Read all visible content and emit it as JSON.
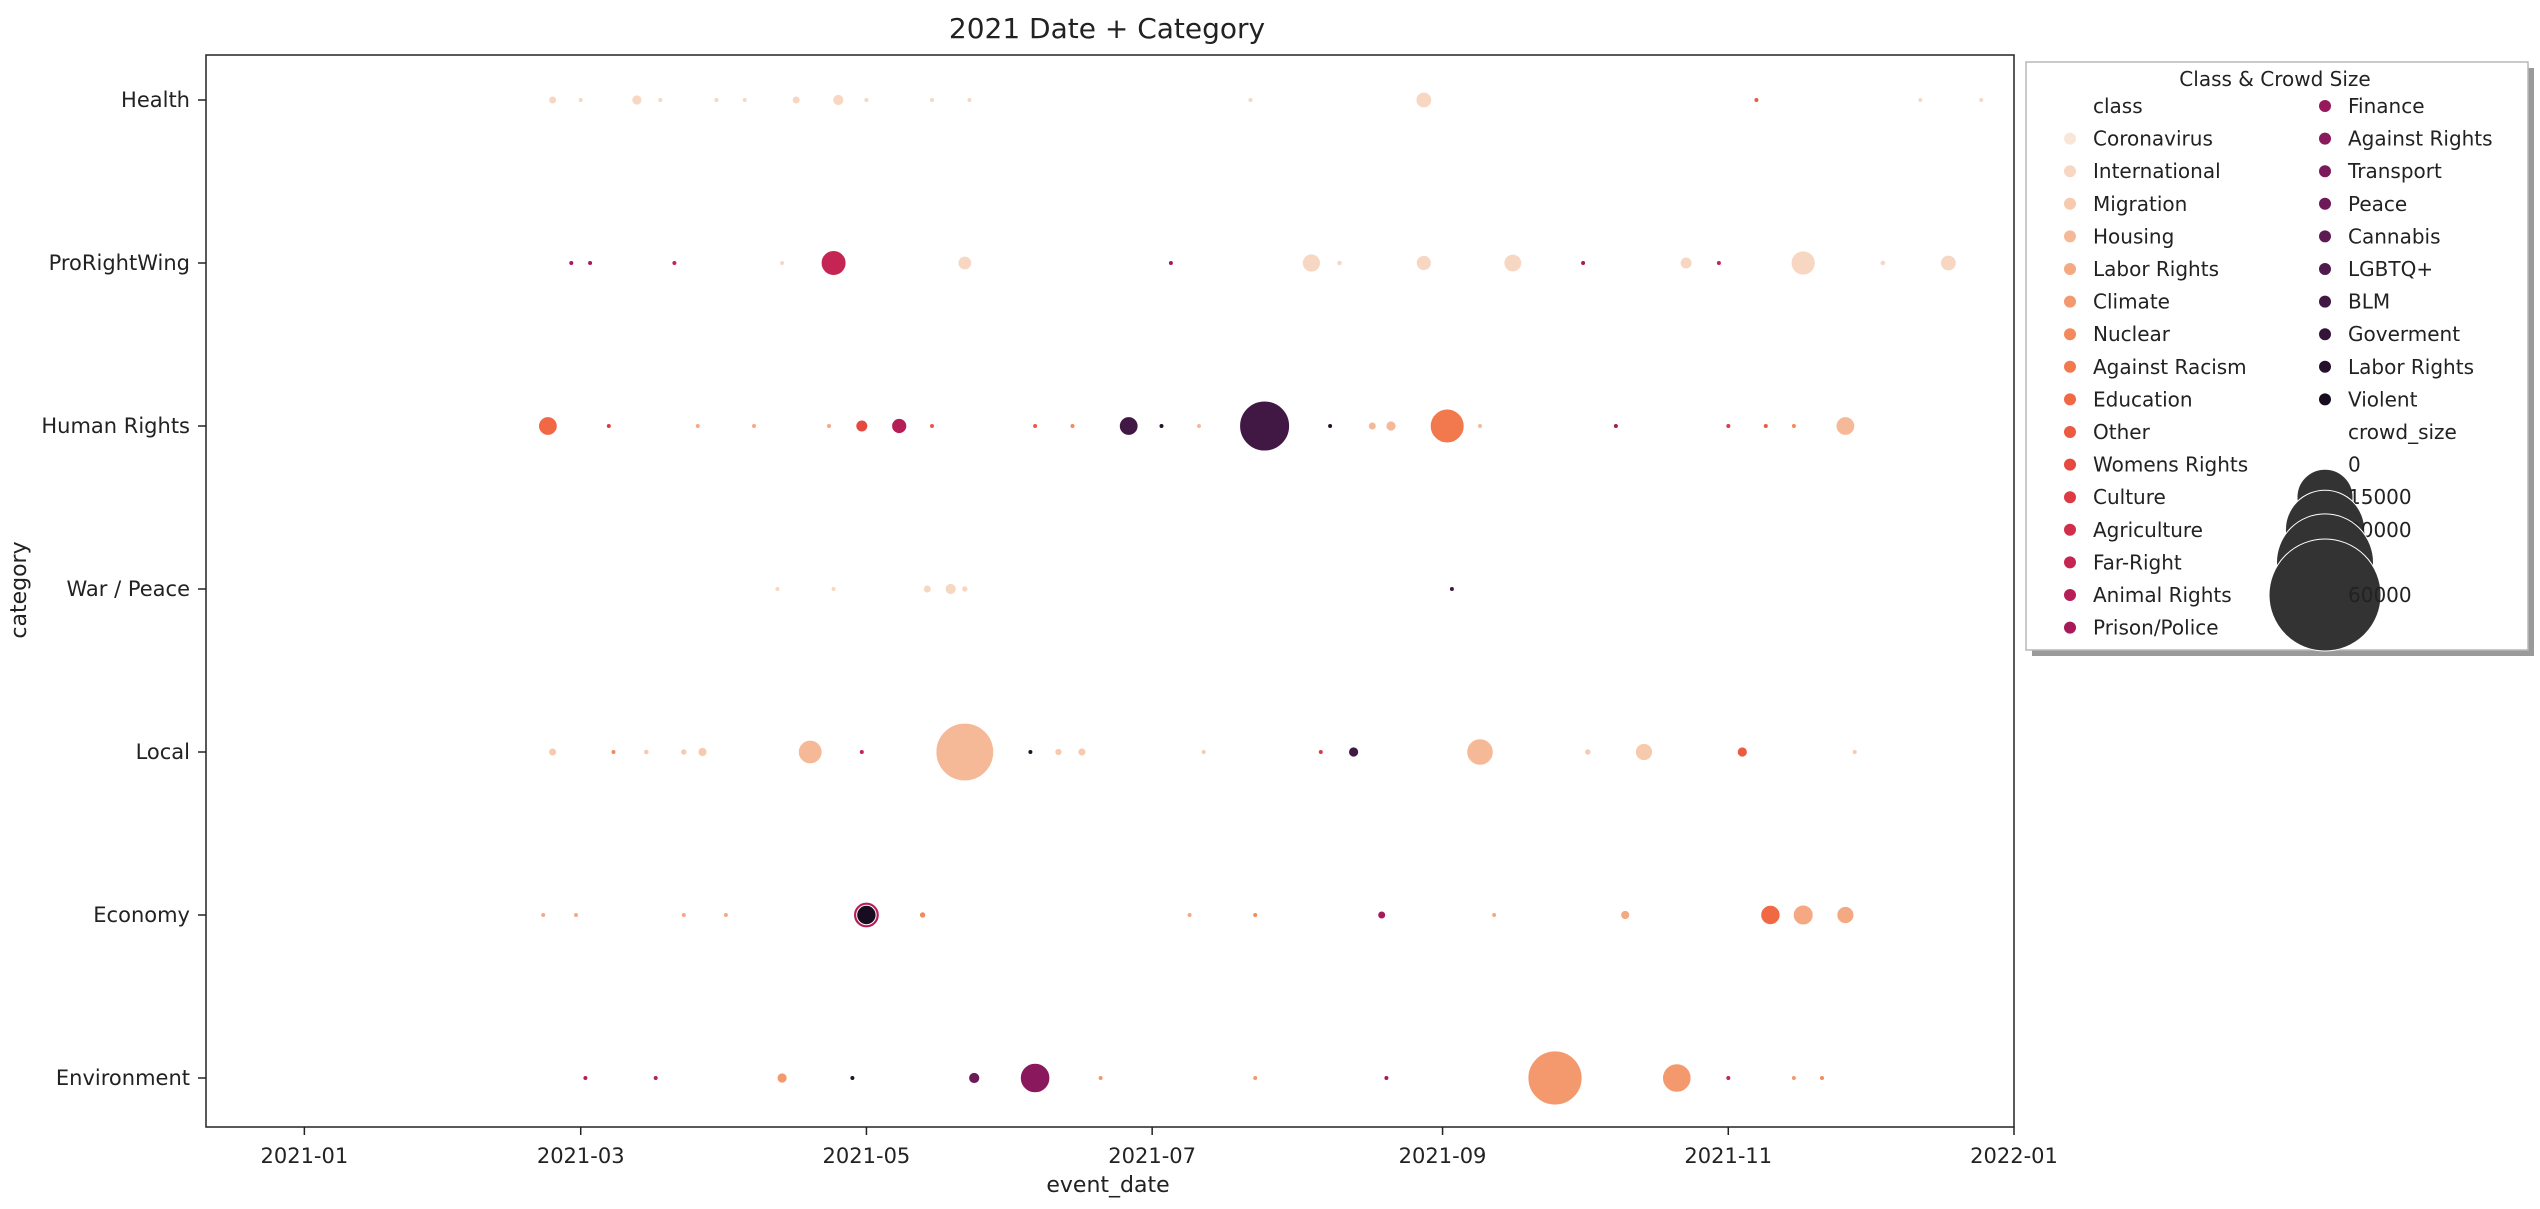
{
  "chart_data": {
    "type": "scatter",
    "title": "2021 Date + Category",
    "xlabel": "event_date",
    "ylabel": "category",
    "x_ticks": [
      "2021-01",
      "2021-03",
      "2021-05",
      "2021-07",
      "2021-09",
      "2021-11",
      "2022-01"
    ],
    "x_range": [
      "2020-12-11",
      "2022-01-01"
    ],
    "categories": [
      "Health",
      "ProRightWing",
      "Human Rights",
      "War / Peace",
      "Local",
      "Economy",
      "Environment"
    ],
    "legend": {
      "title": "Class & Crowd Size",
      "placement": "upper-right-outside",
      "class_header": "class",
      "classes": [
        {
          "name": "Coronavirus",
          "color": "#fae6d8"
        },
        {
          "name": "International",
          "color": "#f8d7c2"
        },
        {
          "name": "Migration",
          "color": "#f7c9ad"
        },
        {
          "name": "Housing",
          "color": "#f6b998"
        },
        {
          "name": "Labor Rights",
          "color": "#f5a982"
        },
        {
          "name": "Climate",
          "color": "#f4996d"
        },
        {
          "name": "Nuclear",
          "color": "#f3895c"
        },
        {
          "name": "Against Racism",
          "color": "#f2784e"
        },
        {
          "name": "Education",
          "color": "#f06844"
        },
        {
          "name": "Other",
          "color": "#ec5a42"
        },
        {
          "name": "Womens Rights",
          "color": "#e5493f"
        },
        {
          "name": "Culture",
          "color": "#dd3a44"
        },
        {
          "name": "Agriculture",
          "color": "#d12e4c"
        },
        {
          "name": "Far-Right",
          "color": "#c42552"
        },
        {
          "name": "Animal Rights",
          "color": "#b61e57"
        },
        {
          "name": "Prison/Police",
          "color": "#a71a5a"
        },
        {
          "name": "Finance",
          "color": "#98185c"
        },
        {
          "name": "Against Rights",
          "color": "#89185c"
        },
        {
          "name": "Transport",
          "color": "#7a1a5b"
        },
        {
          "name": "Peace",
          "color": "#6c1b58"
        },
        {
          "name": "Cannabis",
          "color": "#5e1b53"
        },
        {
          "name": "LGBTQ+",
          "color": "#4f1a4c"
        },
        {
          "name": "BLM",
          "color": "#411843"
        },
        {
          "name": "Goverment",
          "color": "#341539"
        },
        {
          "name": "Labor Rights",
          "color": "#26112d"
        },
        {
          "name": "Violent",
          "color": "#170c20"
        }
      ],
      "size_header": "crowd_size",
      "sizes": [
        0,
        15000,
        30000,
        45000,
        60000
      ],
      "size_labels": [
        "0",
        "15000",
        "30000",
        "",
        "60000"
      ],
      "size_marker_color": "#333333"
    },
    "points": [
      {
        "category": "Health",
        "date": "2021-02-23",
        "size": 300,
        "color": "#f8d7c2"
      },
      {
        "category": "Health",
        "date": "2021-03-01",
        "size": 60,
        "color": "#f8d7c2"
      },
      {
        "category": "Health",
        "date": "2021-03-13",
        "size": 500,
        "color": "#f8d7c2"
      },
      {
        "category": "Health",
        "date": "2021-03-18",
        "size": 80,
        "color": "#f8d7c2"
      },
      {
        "category": "Health",
        "date": "2021-03-30",
        "size": 80,
        "color": "#f8d7c2"
      },
      {
        "category": "Health",
        "date": "2021-04-05",
        "size": 80,
        "color": "#f8d7c2"
      },
      {
        "category": "Health",
        "date": "2021-04-16",
        "size": 300,
        "color": "#f8d7c2"
      },
      {
        "category": "Health",
        "date": "2021-04-25",
        "size": 600,
        "color": "#f8d7c2"
      },
      {
        "category": "Health",
        "date": "2021-05-01",
        "size": 60,
        "color": "#f8d7c2"
      },
      {
        "category": "Health",
        "date": "2021-05-15",
        "size": 60,
        "color": "#f8d7c2"
      },
      {
        "category": "Health",
        "date": "2021-05-23",
        "size": 80,
        "color": "#f8d7c2"
      },
      {
        "category": "Health",
        "date": "2021-07-22",
        "size": 60,
        "color": "#f8d7c2"
      },
      {
        "category": "Health",
        "date": "2021-08-28",
        "size": 1200,
        "color": "#f8d7c2"
      },
      {
        "category": "Health",
        "date": "2021-11-07",
        "size": 80,
        "color": "#ec5a42"
      },
      {
        "category": "Health",
        "date": "2021-12-12",
        "size": 100,
        "color": "#f8d7c2"
      },
      {
        "category": "Health",
        "date": "2021-12-25",
        "size": 80,
        "color": "#f8d7c2"
      },
      {
        "category": "ProRightWing",
        "date": "2021-02-27",
        "size": 80,
        "color": "#a71a5a"
      },
      {
        "category": "ProRightWing",
        "date": "2021-03-03",
        "size": 60,
        "color": "#a71a5a"
      },
      {
        "category": "ProRightWing",
        "date": "2021-03-21",
        "size": 100,
        "color": "#c42552"
      },
      {
        "category": "ProRightWing",
        "date": "2021-04-13",
        "size": 60,
        "color": "#f8d7c2"
      },
      {
        "category": "ProRightWing",
        "date": "2021-04-24",
        "size": 3000,
        "color": "#c42552"
      },
      {
        "category": "ProRightWing",
        "date": "2021-05-22",
        "size": 900,
        "color": "#f8d7c2"
      },
      {
        "category": "ProRightWing",
        "date": "2021-07-05",
        "size": 40,
        "color": "#a71a5a"
      },
      {
        "category": "ProRightWing",
        "date": "2021-08-04",
        "size": 1600,
        "color": "#f8d7c2"
      },
      {
        "category": "ProRightWing",
        "date": "2021-08-10",
        "size": 150,
        "color": "#f8d7c2"
      },
      {
        "category": "ProRightWing",
        "date": "2021-08-28",
        "size": 1100,
        "color": "#f8d7c2"
      },
      {
        "category": "ProRightWing",
        "date": "2021-09-16",
        "size": 1500,
        "color": "#f8d7c2"
      },
      {
        "category": "ProRightWing",
        "date": "2021-10-01",
        "size": 40,
        "color": "#a71a5a"
      },
      {
        "category": "ProRightWing",
        "date": "2021-10-23",
        "size": 700,
        "color": "#f8d7c2"
      },
      {
        "category": "ProRightWing",
        "date": "2021-10-30",
        "size": 60,
        "color": "#c42552"
      },
      {
        "category": "ProRightWing",
        "date": "2021-11-17",
        "size": 2800,
        "color": "#f8d7c2"
      },
      {
        "category": "ProRightWing",
        "date": "2021-12-04",
        "size": 150,
        "color": "#f8d7c2"
      },
      {
        "category": "ProRightWing",
        "date": "2021-12-18",
        "size": 1200,
        "color": "#f8d7c2"
      },
      {
        "category": "Human Rights",
        "date": "2021-02-22",
        "size": 1700,
        "color": "#f06844"
      },
      {
        "category": "Human Rights",
        "date": "2021-03-07",
        "size": 80,
        "color": "#dd3a44"
      },
      {
        "category": "Human Rights",
        "date": "2021-03-26",
        "size": 40,
        "color": "#f5a982"
      },
      {
        "category": "Human Rights",
        "date": "2021-04-07",
        "size": 60,
        "color": "#f5a982"
      },
      {
        "category": "Human Rights",
        "date": "2021-04-23",
        "size": 60,
        "color": "#f5a982"
      },
      {
        "category": "Human Rights",
        "date": "2021-04-30",
        "size": 700,
        "color": "#e5493f"
      },
      {
        "category": "Human Rights",
        "date": "2021-05-08",
        "size": 1100,
        "color": "#b61e57"
      },
      {
        "category": "Human Rights",
        "date": "2021-05-15",
        "size": 100,
        "color": "#ec5a42"
      },
      {
        "category": "Human Rights",
        "date": "2021-06-06",
        "size": 60,
        "color": "#ec5a42"
      },
      {
        "category": "Human Rights",
        "date": "2021-06-14",
        "size": 60,
        "color": "#f3895c"
      },
      {
        "category": "Human Rights",
        "date": "2021-06-26",
        "size": 1700,
        "color": "#411843"
      },
      {
        "category": "Human Rights",
        "date": "2021-07-03",
        "size": 100,
        "color": "#26112d"
      },
      {
        "category": "Human Rights",
        "date": "2021-07-11",
        "size": 60,
        "color": "#f6b998"
      },
      {
        "category": "Human Rights",
        "date": "2021-07-25",
        "size": 12000,
        "color": "#411843"
      },
      {
        "category": "Human Rights",
        "date": "2021-08-08",
        "size": 60,
        "color": "#26112d"
      },
      {
        "category": "Human Rights",
        "date": "2021-08-17",
        "size": 300,
        "color": "#f6b998"
      },
      {
        "category": "Human Rights",
        "date": "2021-08-21",
        "size": 500,
        "color": "#f6b998"
      },
      {
        "category": "Human Rights",
        "date": "2021-09-02",
        "size": 5500,
        "color": "#f2784e"
      },
      {
        "category": "Human Rights",
        "date": "2021-09-09",
        "size": 80,
        "color": "#f6b998"
      },
      {
        "category": "Human Rights",
        "date": "2021-10-08",
        "size": 40,
        "color": "#a71a5a"
      },
      {
        "category": "Human Rights",
        "date": "2021-11-01",
        "size": 40,
        "color": "#dd3a44"
      },
      {
        "category": "Human Rights",
        "date": "2021-11-09",
        "size": 60,
        "color": "#ec5a42"
      },
      {
        "category": "Human Rights",
        "date": "2021-11-15",
        "size": 60,
        "color": "#f3895c"
      },
      {
        "category": "Human Rights",
        "date": "2021-11-26",
        "size": 1700,
        "color": "#f6b998"
      },
      {
        "category": "War / Peace",
        "date": "2021-04-12",
        "size": 40,
        "color": "#f8d7c2"
      },
      {
        "category": "War / Peace",
        "date": "2021-04-24",
        "size": 60,
        "color": "#f8d7c2"
      },
      {
        "category": "War / Peace",
        "date": "2021-05-14",
        "size": 300,
        "color": "#f8d7c2"
      },
      {
        "category": "War / Peace",
        "date": "2021-05-19",
        "size": 600,
        "color": "#f8d7c2"
      },
      {
        "category": "War / Peace",
        "date": "2021-05-22",
        "size": 200,
        "color": "#f8d7c2"
      },
      {
        "category": "War / Peace",
        "date": "2021-09-03",
        "size": 20,
        "color": "#411843"
      },
      {
        "category": "Local",
        "date": "2021-02-23",
        "size": 300,
        "color": "#f7c9ad"
      },
      {
        "category": "Local",
        "date": "2021-03-08",
        "size": 100,
        "color": "#f3895c"
      },
      {
        "category": "Local",
        "date": "2021-03-15",
        "size": 150,
        "color": "#f7c9ad"
      },
      {
        "category": "Local",
        "date": "2021-03-23",
        "size": 200,
        "color": "#f7c9ad"
      },
      {
        "category": "Local",
        "date": "2021-03-27",
        "size": 400,
        "color": "#f7c9ad"
      },
      {
        "category": "Local",
        "date": "2021-04-19",
        "size": 2700,
        "color": "#f6b998"
      },
      {
        "category": "Local",
        "date": "2021-04-30",
        "size": 60,
        "color": "#c42552"
      },
      {
        "category": "Local",
        "date": "2021-05-22",
        "size": 16000,
        "color": "#f6b998"
      },
      {
        "category": "Local",
        "date": "2021-06-05",
        "size": 60,
        "color": "#26112d"
      },
      {
        "category": "Local",
        "date": "2021-06-11",
        "size": 250,
        "color": "#f7c9ad"
      },
      {
        "category": "Local",
        "date": "2021-06-16",
        "size": 300,
        "color": "#f7c9ad"
      },
      {
        "category": "Local",
        "date": "2021-07-12",
        "size": 40,
        "color": "#f7c9ad"
      },
      {
        "category": "Local",
        "date": "2021-08-06",
        "size": 40,
        "color": "#dd3a44"
      },
      {
        "category": "Local",
        "date": "2021-08-13",
        "size": 500,
        "color": "#411843"
      },
      {
        "category": "Local",
        "date": "2021-09-09",
        "size": 3400,
        "color": "#f6b998"
      },
      {
        "category": "Local",
        "date": "2021-10-02",
        "size": 200,
        "color": "#f7c9ad"
      },
      {
        "category": "Local",
        "date": "2021-10-14",
        "size": 1400,
        "color": "#f7c9ad"
      },
      {
        "category": "Local",
        "date": "2021-11-04",
        "size": 500,
        "color": "#ec5a42"
      },
      {
        "category": "Local",
        "date": "2021-11-28",
        "size": 40,
        "color": "#f7c9ad"
      },
      {
        "category": "Economy",
        "date": "2021-02-21",
        "size": 100,
        "color": "#f5a982"
      },
      {
        "category": "Economy",
        "date": "2021-02-28",
        "size": 100,
        "color": "#f5a982"
      },
      {
        "category": "Economy",
        "date": "2021-03-23",
        "size": 40,
        "color": "#f5a982"
      },
      {
        "category": "Economy",
        "date": "2021-04-01",
        "size": 40,
        "color": "#f5a982"
      },
      {
        "category": "Economy",
        "date": "2021-05-01",
        "size": 3200,
        "color": "#b61e57"
      },
      {
        "category": "Economy",
        "date": "2021-05-01",
        "size": 1800,
        "color": "#170c20"
      },
      {
        "category": "Economy",
        "date": "2021-05-13",
        "size": 200,
        "color": "#f3895c"
      },
      {
        "category": "Economy",
        "date": "2021-07-09",
        "size": 40,
        "color": "#f5a982"
      },
      {
        "category": "Economy",
        "date": "2021-07-23",
        "size": 100,
        "color": "#f3895c"
      },
      {
        "category": "Economy",
        "date": "2021-08-19",
        "size": 300,
        "color": "#a71a5a"
      },
      {
        "category": "Economy",
        "date": "2021-09-12",
        "size": 40,
        "color": "#f5a982"
      },
      {
        "category": "Economy",
        "date": "2021-10-10",
        "size": 400,
        "color": "#f5a982"
      },
      {
        "category": "Economy",
        "date": "2021-11-10",
        "size": 1800,
        "color": "#f06844"
      },
      {
        "category": "Economy",
        "date": "2021-11-17",
        "size": 1900,
        "color": "#f5a982"
      },
      {
        "category": "Economy",
        "date": "2021-11-26",
        "size": 1400,
        "color": "#f5a982"
      },
      {
        "category": "Environment",
        "date": "2021-03-02",
        "size": 60,
        "color": "#b61e57"
      },
      {
        "category": "Environment",
        "date": "2021-03-17",
        "size": 60,
        "color": "#b61e57"
      },
      {
        "category": "Environment",
        "date": "2021-04-13",
        "size": 500,
        "color": "#f4996d"
      },
      {
        "category": "Environment",
        "date": "2021-04-28",
        "size": 60,
        "color": "#26112d"
      },
      {
        "category": "Environment",
        "date": "2021-05-24",
        "size": 600,
        "color": "#6c1b58"
      },
      {
        "category": "Environment",
        "date": "2021-06-06",
        "size": 4200,
        "color": "#89185c"
      },
      {
        "category": "Environment",
        "date": "2021-06-20",
        "size": 40,
        "color": "#f4996d"
      },
      {
        "category": "Environment",
        "date": "2021-07-23",
        "size": 60,
        "color": "#f4996d"
      },
      {
        "category": "Environment",
        "date": "2021-08-20",
        "size": 100,
        "color": "#a71a5a"
      },
      {
        "category": "Environment",
        "date": "2021-09-25",
        "size": 14000,
        "color": "#f4996d"
      },
      {
        "category": "Environment",
        "date": "2021-10-21",
        "size": 3900,
        "color": "#f4996d"
      },
      {
        "category": "Environment",
        "date": "2021-11-01",
        "size": 40,
        "color": "#c42552"
      },
      {
        "category": "Environment",
        "date": "2021-11-15",
        "size": 60,
        "color": "#f4996d"
      },
      {
        "category": "Environment",
        "date": "2021-11-21",
        "size": 60,
        "color": "#f3895c"
      }
    ]
  }
}
